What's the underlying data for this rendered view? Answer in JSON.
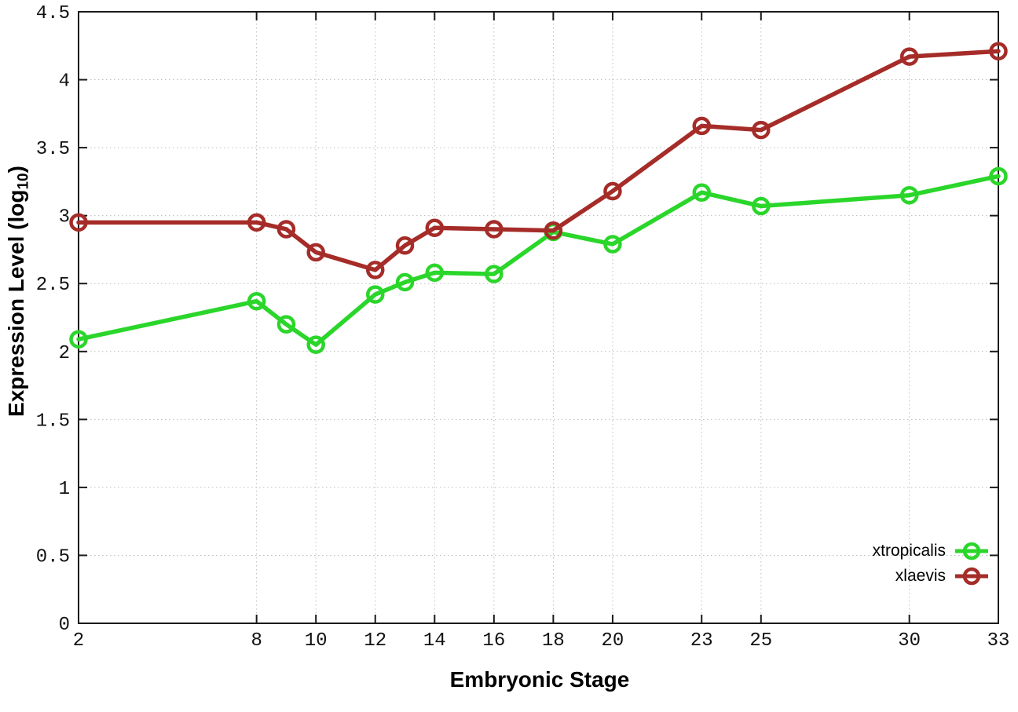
{
  "chart_data": {
    "type": "line",
    "title": "",
    "xlabel": "Embryonic Stage",
    "ylabel": {
      "main": "Expression Level (log",
      "sub": "10",
      "suffix": ")"
    },
    "ylabel_plain": "Expression Level (log10)",
    "x": [
      2,
      8,
      9,
      10,
      12,
      13,
      14,
      16,
      18,
      20,
      23,
      25,
      30,
      33
    ],
    "series": [
      {
        "name": "xtropicalis",
        "color": "#2ad62a",
        "marker": "open-circle",
        "values": [
          2.09,
          2.37,
          2.2,
          2.05,
          2.42,
          2.51,
          2.58,
          2.57,
          2.88,
          2.79,
          3.17,
          3.07,
          3.15,
          3.29
        ]
      },
      {
        "name": "xlaevis",
        "color": "#a52c28",
        "marker": "open-circle",
        "values": [
          2.95,
          2.95,
          2.9,
          2.73,
          2.6,
          2.78,
          2.91,
          2.9,
          2.89,
          3.18,
          3.66,
          3.63,
          4.17,
          4.21
        ]
      }
    ],
    "xlim": [
      2,
      33
    ],
    "ylim": [
      0,
      4.5
    ],
    "x_ticks": [
      2,
      8,
      10,
      12,
      14,
      16,
      18,
      20,
      23,
      25,
      30,
      33
    ],
    "y_ticks": [
      0,
      0.5,
      1,
      1.5,
      2,
      2.5,
      3,
      3.5,
      4,
      4.5
    ],
    "grid": true,
    "grid_style": "dotted",
    "legend_position": "bottom-right",
    "grid_color": "#bdbdbd",
    "border_color": "#1a1a1a",
    "background": "#ffffff"
  }
}
